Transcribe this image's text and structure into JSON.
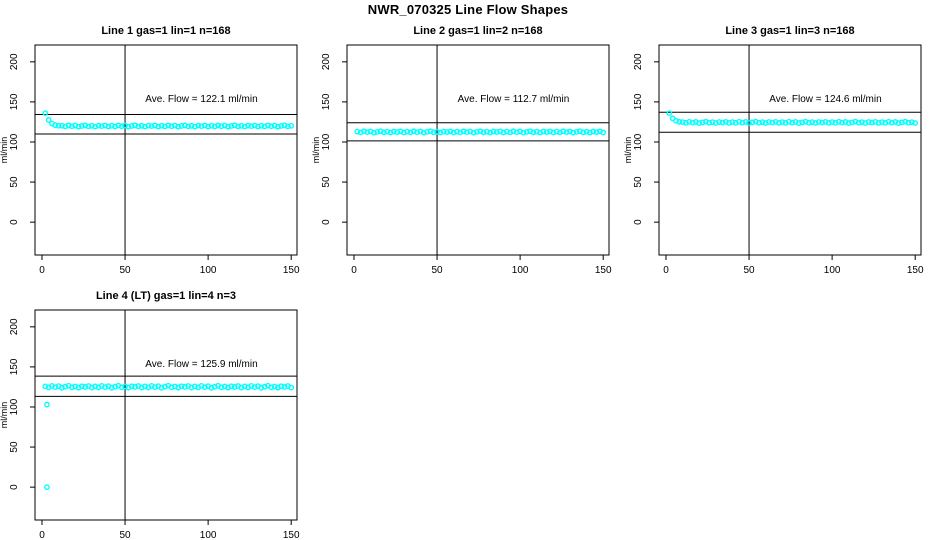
{
  "page": {
    "title": "NWR_070325  Line Flow Shapes"
  },
  "colors": {
    "points": "#00ffff",
    "axis": "#000000",
    "text": "#000000",
    "background": "#ffffff"
  },
  "axes": {
    "x_ticks": [
      0,
      50,
      100,
      150
    ],
    "y_ticks": [
      0,
      50,
      100,
      150,
      200
    ],
    "xlim": [
      0,
      150
    ],
    "ylim": [
      0,
      200
    ],
    "ylabel": "ml/min",
    "vline_x": 50,
    "grid": false,
    "marker": "open-circle"
  },
  "chart_data": [
    {
      "type": "scatter",
      "title": "Line 1 gas=1 lin=1 n=168",
      "gas": 1,
      "lin": 1,
      "n": 168,
      "ave_flow": 122.1,
      "ave_flow_label": "Ave. Flow =  122.1  ml/min",
      "band_upper": 134.3,
      "band_lower": 109.9,
      "x": [
        2,
        4,
        6,
        8,
        10,
        12,
        14,
        16,
        18,
        20,
        22,
        24,
        26,
        28,
        30,
        32,
        34,
        36,
        38,
        40,
        42,
        44,
        46,
        48,
        50,
        52,
        54,
        56,
        58,
        60,
        62,
        64,
        66,
        68,
        70,
        72,
        74,
        76,
        78,
        80,
        82,
        84,
        86,
        88,
        90,
        92,
        94,
        96,
        98,
        100,
        102,
        104,
        106,
        108,
        110,
        112,
        114,
        116,
        118,
        120,
        122,
        124,
        126,
        128,
        130,
        132,
        134,
        136,
        138,
        140,
        142,
        144,
        146,
        148,
        150
      ],
      "y": [
        136.0,
        127.5,
        123.0,
        121.0,
        120.3,
        120.3,
        119.4,
        120.7,
        119.7,
        120.5,
        119.1,
        120.0,
        120.8,
        119.5,
        120.2,
        119.2,
        120.4,
        119.8,
        120.6,
        119.3,
        120.3,
        119.4,
        120.7,
        119.7,
        120.5,
        119.1,
        120.0,
        120.8,
        119.5,
        120.2,
        119.2,
        120.4,
        119.8,
        120.6,
        119.3,
        120.3,
        119.4,
        120.7,
        119.7,
        120.5,
        119.1,
        120.0,
        120.8,
        119.5,
        120.2,
        119.2,
        120.4,
        119.8,
        120.6,
        119.3,
        120.3,
        119.4,
        120.7,
        119.7,
        120.5,
        119.1,
        120.0,
        120.8,
        119.5,
        120.2,
        119.2,
        120.4,
        119.8,
        120.6,
        119.3,
        120.3,
        119.4,
        120.7,
        119.7,
        120.5,
        119.1,
        120.0,
        120.8,
        119.5,
        120.2
      ],
      "outliers": []
    },
    {
      "type": "scatter",
      "title": "Line 2 gas=1 lin=2 n=168",
      "gas": 1,
      "lin": 2,
      "n": 168,
      "ave_flow": 112.7,
      "ave_flow_label": "Ave. Flow =  112.7  ml/min",
      "band_upper": 124.0,
      "band_lower": 101.4,
      "x": [
        2,
        4,
        6,
        8,
        10,
        12,
        14,
        16,
        18,
        20,
        22,
        24,
        26,
        28,
        30,
        32,
        34,
        36,
        38,
        40,
        42,
        44,
        46,
        48,
        50,
        52,
        54,
        56,
        58,
        60,
        62,
        64,
        66,
        68,
        70,
        72,
        74,
        76,
        78,
        80,
        82,
        84,
        86,
        88,
        90,
        92,
        94,
        96,
        98,
        100,
        102,
        104,
        106,
        108,
        110,
        112,
        114,
        116,
        118,
        120,
        122,
        124,
        126,
        128,
        130,
        132,
        134,
        136,
        138,
        140,
        142,
        144,
        146,
        148,
        150
      ],
      "y": [
        112.9,
        112.0,
        113.3,
        112.3,
        113.1,
        111.7,
        112.6,
        113.4,
        112.1,
        112.8,
        111.8,
        113.0,
        112.4,
        113.2,
        111.9,
        112.9,
        112.0,
        113.3,
        112.3,
        113.1,
        111.7,
        112.6,
        113.4,
        112.1,
        112.8,
        111.8,
        113.0,
        112.4,
        113.2,
        111.9,
        112.9,
        112.0,
        113.3,
        112.3,
        113.1,
        111.7,
        112.6,
        113.4,
        112.1,
        112.8,
        111.8,
        113.0,
        112.4,
        113.2,
        111.9,
        112.9,
        112.0,
        113.3,
        112.3,
        113.1,
        111.7,
        112.6,
        113.4,
        112.1,
        112.8,
        111.8,
        113.0,
        112.4,
        113.2,
        111.9,
        112.9,
        112.0,
        113.3,
        112.3,
        113.1,
        111.7,
        112.6,
        113.4,
        112.1,
        112.8,
        111.8,
        113.0,
        112.4,
        113.2,
        111.9
      ],
      "outliers": []
    },
    {
      "type": "scatter",
      "title": "Line 3 gas=1 lin=3 n=168",
      "gas": 1,
      "lin": 3,
      "n": 168,
      "ave_flow": 124.6,
      "ave_flow_label": "Ave. Flow =  124.6  ml/min",
      "band_upper": 137.1,
      "band_lower": 112.1,
      "x": [
        2,
        4,
        6,
        8,
        10,
        12,
        14,
        16,
        18,
        20,
        22,
        24,
        26,
        28,
        30,
        32,
        34,
        36,
        38,
        40,
        42,
        44,
        46,
        48,
        50,
        52,
        54,
        56,
        58,
        60,
        62,
        64,
        66,
        68,
        70,
        72,
        74,
        76,
        78,
        80,
        82,
        84,
        86,
        88,
        90,
        92,
        94,
        96,
        98,
        100,
        102,
        104,
        106,
        108,
        110,
        112,
        114,
        116,
        118,
        120,
        122,
        124,
        126,
        128,
        130,
        132,
        134,
        136,
        138,
        140,
        142,
        144,
        146,
        148,
        150
      ],
      "y": [
        136.0,
        129.5,
        126.5,
        125.2,
        124.8,
        123.9,
        125.2,
        124.2,
        125.0,
        123.6,
        124.5,
        125.3,
        124.0,
        124.7,
        123.7,
        124.9,
        124.3,
        125.1,
        123.8,
        124.8,
        123.9,
        125.2,
        124.2,
        125.0,
        123.6,
        124.5,
        125.3,
        124.0,
        124.7,
        123.7,
        124.9,
        124.3,
        125.1,
        123.8,
        124.8,
        123.9,
        125.2,
        124.2,
        125.0,
        123.6,
        124.5,
        125.3,
        124.0,
        124.7,
        123.7,
        124.9,
        124.3,
        125.1,
        123.8,
        124.8,
        123.9,
        125.2,
        124.2,
        125.0,
        123.6,
        124.5,
        125.3,
        124.0,
        124.7,
        123.7,
        124.9,
        124.3,
        125.1,
        123.8,
        124.8,
        123.9,
        125.2,
        124.2,
        125.0,
        123.6,
        124.5,
        125.3,
        124.0,
        124.7,
        123.7
      ],
      "outliers": []
    },
    {
      "type": "scatter",
      "title": "Line 4 (LT) gas=1 lin=4 n=3",
      "gas": 1,
      "lin": 4,
      "n": 3,
      "ave_flow": 125.9,
      "ave_flow_label": "Ave. Flow =  125.9  ml/min",
      "band_upper": 138.5,
      "band_lower": 113.3,
      "x": [
        2,
        4,
        6,
        8,
        10,
        12,
        14,
        16,
        18,
        20,
        22,
        24,
        26,
        28,
        30,
        32,
        34,
        36,
        38,
        40,
        42,
        44,
        46,
        48,
        50,
        52,
        54,
        56,
        58,
        60,
        62,
        64,
        66,
        68,
        70,
        72,
        74,
        76,
        78,
        80,
        82,
        84,
        86,
        88,
        90,
        92,
        94,
        96,
        98,
        100,
        102,
        104,
        106,
        108,
        110,
        112,
        114,
        116,
        118,
        120,
        122,
        124,
        126,
        128,
        130,
        132,
        134,
        136,
        138,
        140,
        142,
        144,
        146,
        148,
        150
      ],
      "y": [
        125.7,
        124.4,
        126.3,
        124.8,
        126.0,
        123.9,
        125.3,
        126.5,
        124.5,
        125.6,
        124.1,
        125.9,
        125.0,
        126.2,
        124.2,
        125.7,
        124.4,
        126.3,
        124.8,
        126.0,
        123.9,
        125.3,
        126.5,
        124.5,
        125.6,
        124.1,
        125.9,
        125.0,
        126.2,
        124.2,
        125.7,
        124.4,
        126.3,
        124.8,
        126.0,
        123.9,
        125.3,
        126.5,
        124.5,
        125.6,
        124.1,
        125.9,
        125.0,
        126.2,
        124.2,
        125.7,
        124.4,
        126.3,
        124.8,
        126.0,
        123.9,
        125.3,
        126.5,
        124.5,
        125.6,
        124.1,
        125.9,
        125.0,
        126.2,
        124.2,
        125.7,
        124.4,
        126.3,
        124.8,
        126.0,
        123.9,
        125.3,
        126.5,
        124.5,
        125.6,
        124.1,
        125.9,
        125.0,
        126.2,
        124.2
      ],
      "outliers": [
        [
          3,
          103
        ],
        [
          3,
          0
        ]
      ]
    }
  ]
}
